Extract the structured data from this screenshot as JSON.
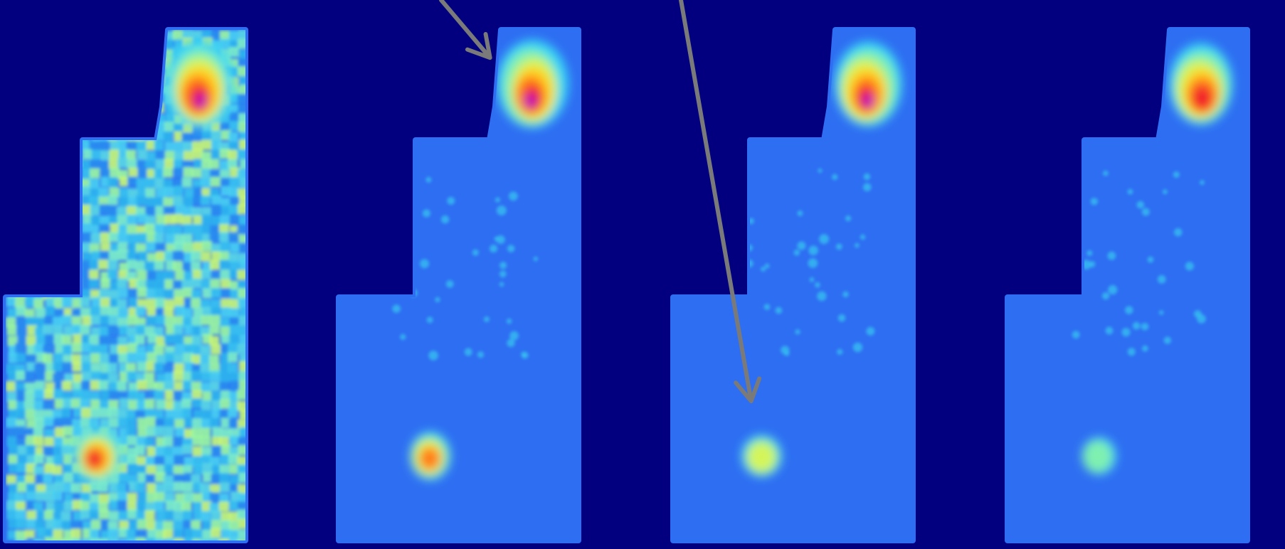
{
  "scene": {
    "background_color": "#02007f",
    "panel_base_color": "#2e6ef2",
    "noise_palette": [
      "#36c3f0",
      "#2fb6ee",
      "#5ad8e6",
      "#7ef0c8",
      "#9cf7a0",
      "#c8f775",
      "#2a8cf0",
      "#48d0f2"
    ],
    "hotspot_palette": [
      "#37d7f5",
      "#7ff0b0",
      "#d4f55a",
      "#ffd21e",
      "#ff7a1a",
      "#f21e2a",
      "#b000c8"
    ],
    "arrow_color": "#7a7a7a"
  },
  "panels": [
    {
      "name": "map-panel-1",
      "textured": true,
      "hotspots": [
        {
          "name": "north-hotspot",
          "intensity": 6,
          "kind": "top"
        },
        {
          "name": "south-hotspot",
          "intensity": 5,
          "kind": "bottom"
        }
      ]
    },
    {
      "name": "map-panel-2",
      "textured": false,
      "hotspots": [
        {
          "name": "north-hotspot",
          "intensity": 6,
          "kind": "top"
        },
        {
          "name": "south-hotspot",
          "intensity": 3.5,
          "kind": "bottom"
        }
      ]
    },
    {
      "name": "map-panel-3",
      "textured": false,
      "hotspots": [
        {
          "name": "north-hotspot",
          "intensity": 5.5,
          "kind": "top"
        },
        {
          "name": "south-hotspot",
          "intensity": 2,
          "kind": "bottom"
        }
      ]
    },
    {
      "name": "map-panel-4",
      "textured": false,
      "hotspots": [
        {
          "name": "north-hotspot",
          "intensity": 5,
          "kind": "top"
        },
        {
          "name": "south-hotspot",
          "intensity": 1,
          "kind": "bottom"
        }
      ]
    }
  ],
  "arrows": [
    {
      "name": "annotation-arrow-north",
      "target_panel": 2,
      "target": "north-hotspot"
    },
    {
      "name": "annotation-arrow-south",
      "target_panel": 3,
      "target": "south-hotspot"
    }
  ]
}
